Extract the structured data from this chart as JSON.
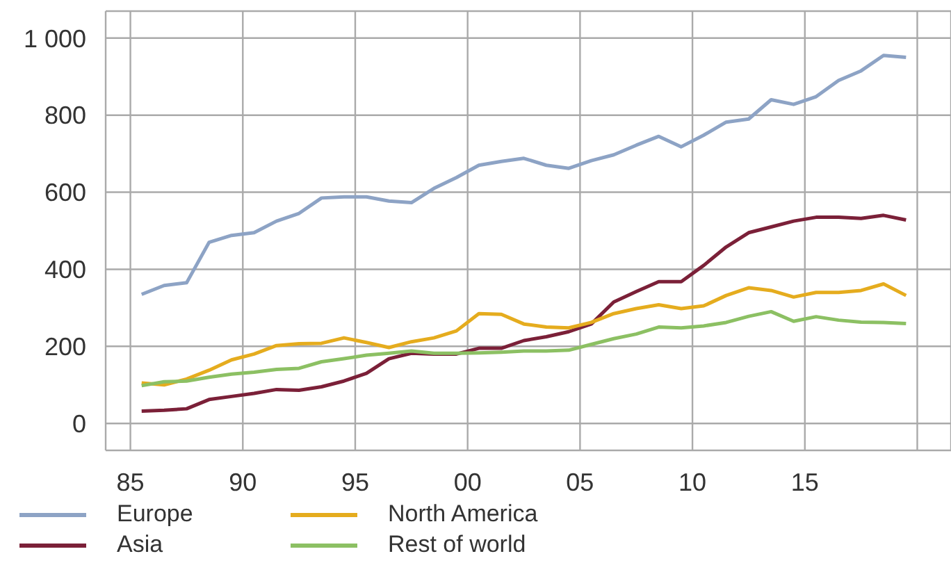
{
  "chart_data": {
    "type": "line",
    "x": [
      1985.5,
      1986.5,
      1987.5,
      1988.5,
      1989.5,
      1990.5,
      1991.5,
      1992.5,
      1993.5,
      1994.5,
      1995.5,
      1996.5,
      1997.5,
      1998.5,
      1999.5,
      2000.5,
      2001.5,
      2002.5,
      2003.5,
      2004.5,
      2005.5,
      2006.5,
      2007.5,
      2008.5,
      2009.5,
      2010.5,
      2011.5,
      2012.5,
      2013.5,
      2014.5,
      2015.5,
      2016.5,
      2017.5,
      2018.5,
      2019.5
    ],
    "series": [
      {
        "name": "Europe",
        "color": "#8da3c5",
        "values": [
          335,
          358,
          365,
          470,
          488,
          495,
          525,
          545,
          585,
          588,
          588,
          577,
          573,
          610,
          638,
          670,
          680,
          688,
          670,
          662,
          682,
          697,
          722,
          745,
          718,
          748,
          782,
          790,
          840,
          828,
          848,
          890,
          915,
          955,
          950
        ]
      },
      {
        "name": "Asia",
        "color": "#7b2038",
        "values": [
          32,
          34,
          38,
          62,
          70,
          78,
          88,
          86,
          95,
          110,
          130,
          168,
          182,
          180,
          180,
          195,
          195,
          215,
          225,
          238,
          258,
          315,
          342,
          368,
          368,
          410,
          458,
          495,
          510,
          525,
          535,
          535,
          532,
          540,
          528
        ]
      },
      {
        "name": "North America",
        "color": "#e5ac1e",
        "values": [
          105,
          100,
          115,
          138,
          165,
          180,
          202,
          207,
          208,
          222,
          210,
          197,
          212,
          222,
          240,
          285,
          283,
          258,
          250,
          248,
          262,
          285,
          298,
          308,
          298,
          305,
          332,
          352,
          345,
          328,
          340,
          340,
          345,
          362,
          332
        ]
      },
      {
        "name": "Rest of world",
        "color": "#8cc063",
        "values": [
          98,
          108,
          110,
          120,
          128,
          133,
          140,
          143,
          160,
          168,
          177,
          182,
          188,
          182,
          182,
          183,
          185,
          188,
          188,
          190,
          205,
          220,
          232,
          250,
          248,
          253,
          262,
          278,
          290,
          265,
          277,
          268,
          263,
          262,
          259
        ]
      }
    ],
    "xlim": [
      1983.9,
      2021.5
    ],
    "xticks": [
      {
        "value": 1985,
        "label": "85"
      },
      {
        "value": 1990,
        "label": "90"
      },
      {
        "value": 1995,
        "label": "95"
      },
      {
        "value": 2000,
        "label": "00"
      },
      {
        "value": 2005,
        "label": "05"
      },
      {
        "value": 2010,
        "label": "10"
      },
      {
        "value": 2015,
        "label": "15"
      },
      {
        "value": 2020,
        "label": null
      }
    ],
    "ylim": [
      -70,
      1070
    ],
    "yticks": [
      0,
      200,
      400,
      600,
      800,
      {
        "value": 1000,
        "label": "1 000"
      }
    ],
    "grid": true,
    "legend": "bottom",
    "marker": "none",
    "line_style": "solid"
  }
}
